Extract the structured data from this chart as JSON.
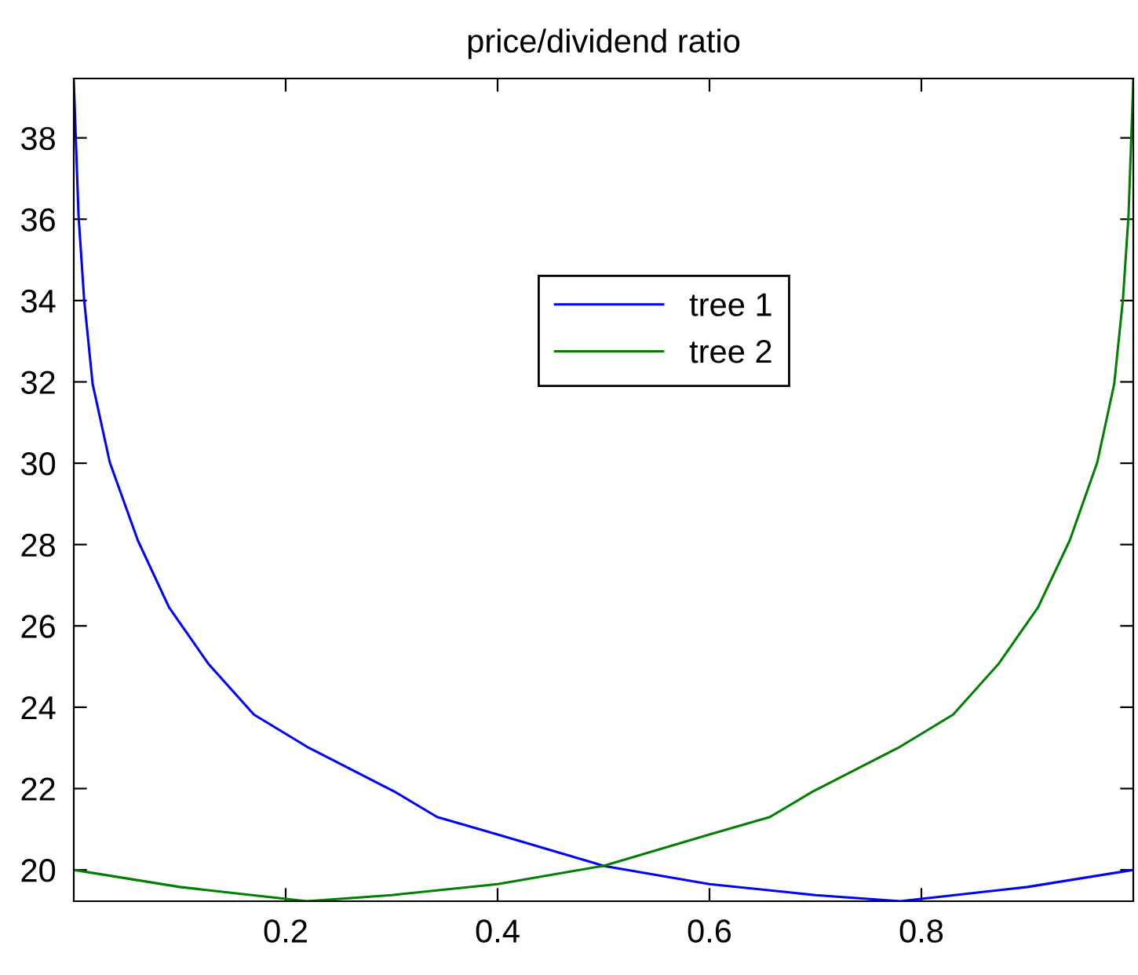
{
  "chart_data": {
    "type": "line",
    "title": "price/dividend ratio",
    "series": [
      {
        "name": "tree 1",
        "color": "#0000ff",
        "x": [
          0,
          0.0045,
          0.0098,
          0.0178,
          0.034,
          0.0605,
          0.09,
          0.127,
          0.17,
          0.222,
          0.303,
          0.343,
          0.4,
          0.5,
          0.6,
          0.7,
          0.78,
          0.9,
          1
        ],
        "values": [
          39.4,
          36.09,
          34.02,
          31.95,
          30.02,
          28.1,
          26.45,
          25.07,
          23.82,
          23.0,
          21.92,
          21.3,
          20.87,
          20.1,
          19.65,
          19.38,
          19.23,
          19.58,
          20.0
        ]
      },
      {
        "name": "tree 2",
        "color": "#008000",
        "x": [
          0,
          0.1,
          0.22,
          0.3,
          0.4,
          0.5,
          0.6,
          0.657,
          0.697,
          0.778,
          0.83,
          0.873,
          0.91,
          0.94,
          0.966,
          0.982,
          0.9902,
          0.9955,
          1
        ],
        "values": [
          20.0,
          19.58,
          19.23,
          19.38,
          19.65,
          20.1,
          20.87,
          21.3,
          21.92,
          23.0,
          23.82,
          25.07,
          26.45,
          28.1,
          30.02,
          31.95,
          34.02,
          36.09,
          39.4
        ]
      }
    ],
    "xlim": [
      0,
      1
    ],
    "ylim": [
      19.23,
      39.46
    ],
    "xticks": [
      0.2,
      0.4,
      0.6,
      0.8
    ],
    "yticks": [
      20,
      22,
      24,
      26,
      28,
      30,
      32,
      34,
      36,
      38
    ],
    "grid": false,
    "legend": "top",
    "marker": "none",
    "line_style": "solid"
  }
}
